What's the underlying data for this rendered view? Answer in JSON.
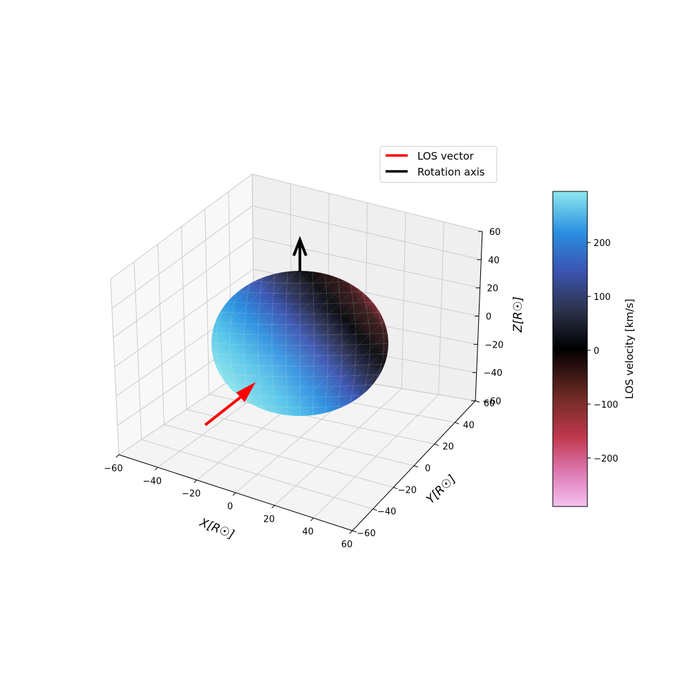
{
  "chart_data": {
    "type": "3d-surface",
    "surface": "oblate rotating ellipsoid colored by line-of-sight velocity",
    "axes": {
      "x": {
        "label": "X[R☉]",
        "range": [
          -60,
          60
        ],
        "ticks": [
          -60,
          -40,
          -20,
          0,
          20,
          40,
          60
        ]
      },
      "y": {
        "label": "Y[R☉]",
        "range": [
          -60,
          60
        ],
        "ticks": [
          -60,
          -40,
          -20,
          0,
          20,
          40,
          60
        ]
      },
      "z": {
        "label": "Z[R☉]",
        "range": [
          -60,
          60
        ],
        "ticks": [
          -60,
          -40,
          -20,
          0,
          20,
          40,
          60
        ]
      }
    },
    "grid": true,
    "legend": {
      "placement": "top-right",
      "entries": [
        {
          "label": "LOS vector",
          "color": "#ff0000"
        },
        {
          "label": "Rotation axis",
          "color": "#000000"
        }
      ]
    },
    "colorbar": {
      "label": "LOS velocity [km/s]",
      "range": [
        -290,
        295
      ],
      "ticks": [
        -200,
        -100,
        0,
        100,
        200
      ],
      "colormap": "berlin-like (pink → red → black → blue → cyan)"
    },
    "colors": {
      "los_vector": "#ff0000",
      "rotation_axis": "#000000",
      "pane": "#f2f2f2",
      "grid": "#cccccc"
    }
  }
}
